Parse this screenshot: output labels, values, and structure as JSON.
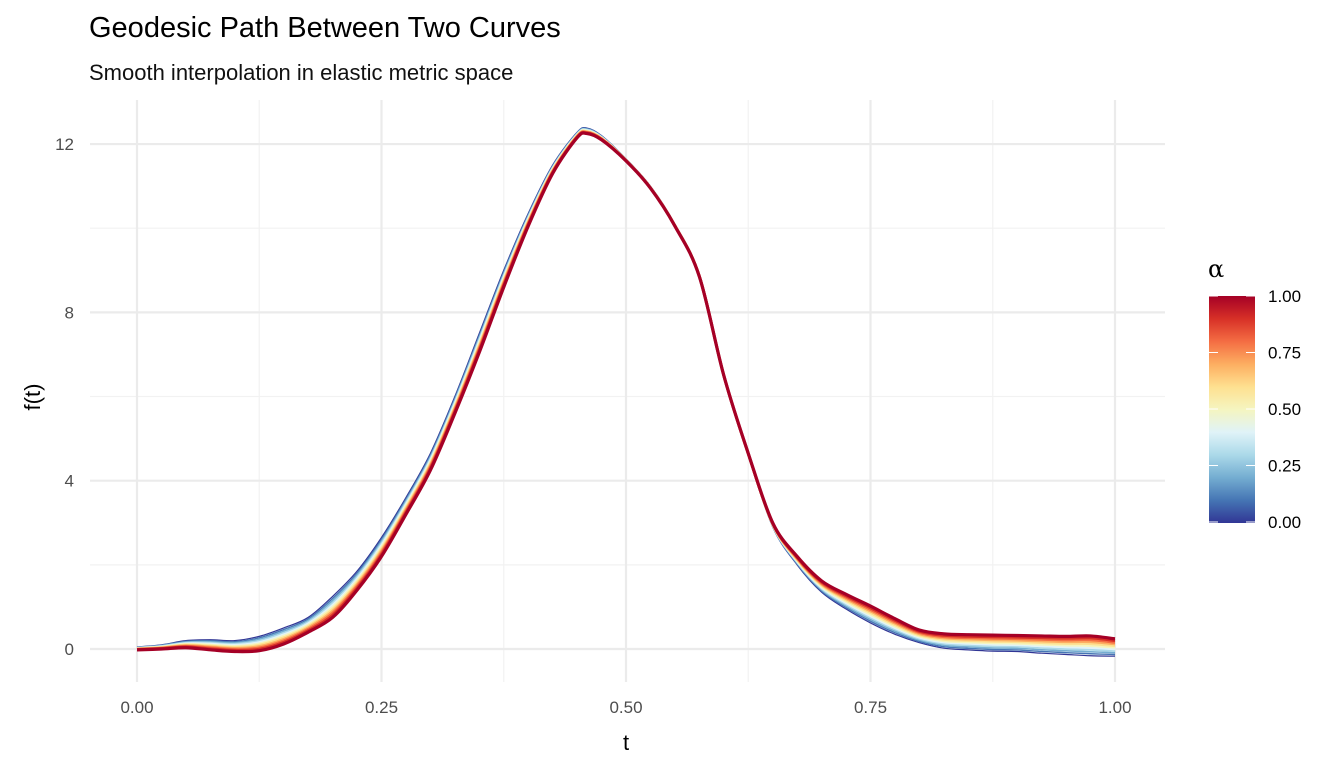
{
  "chart_data": {
    "type": "line",
    "title": "Geodesic Path Between Two Curves",
    "subtitle": "Smooth interpolation in elastic metric space",
    "xlabel": "t",
    "ylabel": "f(t)",
    "xlim": [
      -0.045,
      1.045
    ],
    "ylim": [
      -0.8,
      12.95
    ],
    "x_ticks": [
      0,
      0.25,
      0.5,
      0.75,
      1
    ],
    "x_tick_labels": [
      "0.00",
      "0.25",
      "0.50",
      "0.75",
      "1.00"
    ],
    "y_ticks": [
      0,
      4,
      8,
      12
    ],
    "y_tick_labels": [
      "0",
      "4",
      "8",
      "12"
    ],
    "grid": true,
    "legend": {
      "title": "α",
      "placement": "right",
      "type": "colorbar",
      "labels": [
        "0.00",
        "0.25",
        "0.50",
        "0.75",
        "1.00"
      ],
      "values": [
        0,
        0.25,
        0.5,
        0.75,
        1
      ]
    },
    "alphas": [
      0,
      0.1,
      0.2,
      0.3,
      0.4,
      0.5,
      0.6,
      0.7,
      0.8,
      0.9,
      1.0
    ],
    "x": [
      0,
      0.025,
      0.05,
      0.075,
      0.1,
      0.125,
      0.15,
      0.175,
      0.2,
      0.225,
      0.25,
      0.275,
      0.3,
      0.325,
      0.35,
      0.375,
      0.4,
      0.425,
      0.45,
      0.46,
      0.475,
      0.5,
      0.525,
      0.55,
      0.575,
      0.6,
      0.625,
      0.65,
      0.675,
      0.7,
      0.725,
      0.75,
      0.775,
      0.8,
      0.825,
      0.85,
      0.875,
      0.9,
      0.925,
      0.95,
      0.975,
      1.0
    ],
    "series": [
      {
        "name": "alpha = 0",
        "alpha": 0,
        "values": [
          0.05,
          0.1,
          0.2,
          0.22,
          0.2,
          0.3,
          0.5,
          0.75,
          1.25,
          1.85,
          2.65,
          3.6,
          4.65,
          6.0,
          7.5,
          9.0,
          10.35,
          11.5,
          12.28,
          12.38,
          12.2,
          11.65,
          11.0,
          10.1,
          8.9,
          6.5,
          4.6,
          2.9,
          2.0,
          1.35,
          0.95,
          0.62,
          0.35,
          0.15,
          0.02,
          -0.02,
          -0.05,
          -0.06,
          -0.1,
          -0.13,
          -0.16,
          -0.17
        ]
      },
      {
        "name": "alpha = 1",
        "alpha": 1,
        "values": [
          -0.02,
          0.0,
          0.03,
          -0.02,
          -0.06,
          -0.04,
          0.12,
          0.4,
          0.75,
          1.4,
          2.2,
          3.2,
          4.25,
          5.6,
          7.05,
          8.6,
          10.05,
          11.3,
          12.15,
          12.25,
          12.1,
          11.6,
          10.95,
          10.05,
          8.85,
          6.5,
          4.65,
          3.0,
          2.2,
          1.62,
          1.3,
          1.02,
          0.72,
          0.45,
          0.36,
          0.34,
          0.33,
          0.32,
          0.31,
          0.3,
          0.31,
          0.24
        ]
      }
    ],
    "colormap": [
      "#313695",
      "#4575b4",
      "#74add1",
      "#abd9e9",
      "#e0f3f8",
      "#f5f5c0",
      "#fee090",
      "#fdae61",
      "#f46d43",
      "#d73027",
      "#a50026"
    ]
  }
}
